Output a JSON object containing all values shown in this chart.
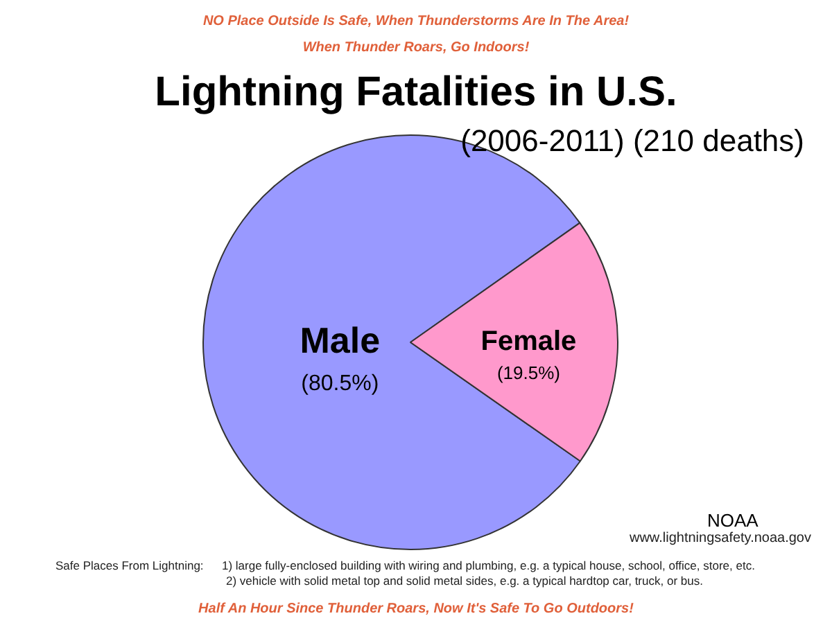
{
  "chart_data": {
    "type": "pie",
    "title": "Lightning Fatalities in U.S.",
    "subtitle": "(2006-2011) (210 deaths)",
    "categories": [
      "Male",
      "Female"
    ],
    "values": [
      80.5,
      19.5
    ],
    "value_labels": [
      "(80.5%)",
      "(19.5%)"
    ],
    "colors": [
      "#9999ff",
      "#ff99cc"
    ],
    "legend": false,
    "annotations": [
      "NO Place Outside Is Safe, When Thunderstorms Are In The Area!",
      "When Thunder Roars, Go Indoors!",
      "NOAA",
      "www.lightningsafety.noaa.gov",
      "Safe Places From Lightning:",
      "1) large fully-enclosed building with wiring and plumbing, e.g. a typical house, school, office, store, etc.",
      "2) vehicle with solid metal top and solid metal sides, e.g. a typical hardtop car, truck, or bus.",
      "Half An Hour Since Thunder Roars, Now It's Safe To Go Outdoors!"
    ]
  }
}
